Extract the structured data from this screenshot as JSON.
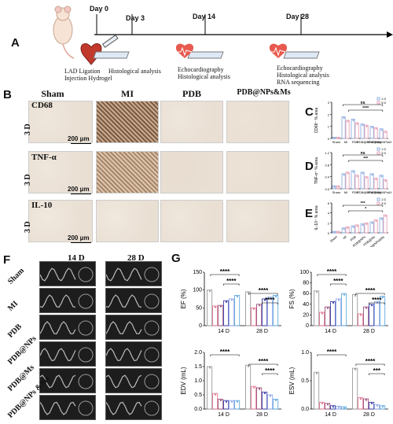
{
  "panels": {
    "a": "A",
    "b": "B",
    "c": "C",
    "d": "D",
    "e": "E",
    "f": "F",
    "g": "G"
  },
  "timeline": {
    "days": [
      "Day 0",
      "Day 3",
      "Day 14",
      "Day 28"
    ],
    "day0_labels": [
      "LAD Ligation",
      "Injection Hydrogel"
    ],
    "day3_labels": [
      "Histological analysis"
    ],
    "day14_labels": [
      "Echocardiography",
      "Histological analysis"
    ],
    "day28_labels": [
      "Echocardiography",
      "Histological analysis",
      "RNA sequencing"
    ]
  },
  "ihc": {
    "columns": [
      "Sham",
      "MI",
      "PDB",
      "PDB@NPs&Ms"
    ],
    "stains": [
      "CD68",
      "TNF-α",
      "IL-10"
    ],
    "row_label": "3 D",
    "scale": "200 μm"
  },
  "echo": {
    "columns": [
      "14 D",
      "28 D"
    ],
    "rows": [
      "Sham",
      "MI",
      "PDB",
      "PDB@NPs",
      "PDB@Ms",
      "PDB@NPs &Ms"
    ]
  },
  "colors": {
    "sham": "#9a9a9a",
    "mi": "#e2758f",
    "pdb": "#9b4f7c",
    "nps": "#3a3fa8",
    "ms": "#8fa6e8",
    "nmsms": "#5fa8e0"
  },
  "chart_data": [
    {
      "type": "bar",
      "id": "ef",
      "ylabel": "EF (%)",
      "ylim": [
        0,
        150
      ],
      "yticks": [
        0,
        50,
        100,
        150
      ],
      "categories": [
        "14 D",
        "28 D"
      ],
      "series": [
        {
          "values": [
            100,
            95
          ]
        },
        {
          "values": [
            55,
            50
          ]
        },
        {
          "values": [
            57,
            60
          ]
        },
        {
          "values": [
            70,
            75
          ]
        },
        {
          "values": [
            75,
            80
          ]
        },
        {
          "values": [
            85,
            85
          ]
        }
      ],
      "sig": [
        "****",
        "****",
        "****",
        "****"
      ]
    },
    {
      "type": "bar",
      "id": "fs",
      "ylabel": "FS (%)",
      "ylim": [
        0,
        100
      ],
      "yticks": [
        0,
        20,
        40,
        60,
        80,
        100
      ],
      "categories": [
        "14 D",
        "28 D"
      ],
      "series": [
        {
          "values": [
            65,
            58
          ]
        },
        {
          "values": [
            25,
            22
          ]
        },
        {
          "values": [
            35,
            35
          ]
        },
        {
          "values": [
            45,
            40
          ]
        },
        {
          "values": [
            50,
            45
          ]
        },
        {
          "values": [
            60,
            55
          ]
        }
      ],
      "sig": [
        "****",
        "****",
        "****",
        "****"
      ]
    },
    {
      "type": "bar",
      "id": "edv",
      "ylabel": "EDV (mL)",
      "ylim": [
        0,
        2.0
      ],
      "yticks": [
        0.0,
        0.5,
        1.0,
        1.5,
        2.0
      ],
      "categories": [
        "14 D",
        "28 D"
      ],
      "series": [
        {
          "values": [
            1.5,
            1.55
          ]
        },
        {
          "values": [
            0.55,
            0.8
          ]
        },
        {
          "values": [
            0.35,
            0.75
          ]
        },
        {
          "values": [
            0.3,
            0.6
          ]
        },
        {
          "values": [
            0.3,
            0.5
          ]
        },
        {
          "values": [
            0.3,
            0.35
          ]
        }
      ],
      "sig": [
        "****",
        "****",
        "****"
      ]
    },
    {
      "type": "bar",
      "id": "esv",
      "ylabel": "ESV (mL)",
      "ylim": [
        0,
        1.0
      ],
      "yticks": [
        0.0,
        0.5,
        1.0
      ],
      "categories": [
        "14 D",
        "28 D"
      ],
      "series": [
        {
          "values": [
            0.65,
            0.72
          ]
        },
        {
          "values": [
            0.12,
            0.2
          ]
        },
        {
          "values": [
            0.1,
            0.18
          ]
        },
        {
          "values": [
            0.06,
            0.12
          ]
        },
        {
          "values": [
            0.05,
            0.08
          ]
        },
        {
          "values": [
            0.04,
            0.06
          ]
        }
      ],
      "sig": [
        "****",
        "****",
        "***"
      ]
    },
    {
      "type": "bar",
      "id": "cd68",
      "ylabel": "CD68⁺ % area",
      "ylim": [
        0,
        3
      ],
      "yticks": [
        0,
        1,
        2,
        3
      ],
      "categories": [
        "Sham",
        "MI",
        "PDB",
        "PDB@NPs",
        "PDB@Ms",
        "PDB@NPs&Ms"
      ],
      "series": [
        {
          "name": "1 D",
          "values": [
            0.1,
            1.8,
            1.6,
            1.2,
            1.0,
            0.8
          ]
        },
        {
          "name": "3 D",
          "values": [
            0.1,
            1.5,
            1.3,
            1.1,
            0.9,
            0.6
          ]
        }
      ],
      "sig": [
        "ns",
        "****"
      ]
    },
    {
      "type": "bar",
      "id": "tnf",
      "ylabel": "TNF-α⁺ % area",
      "ylim": [
        0,
        1.2
      ],
      "yticks": [
        0,
        0.4,
        0.8,
        1.2
      ],
      "categories": [
        "Sham",
        "MI",
        "PDB",
        "PDB@NPs",
        "PDB@Ms",
        "PDB@NPs&Ms"
      ],
      "series": [
        {
          "name": "1 D",
          "values": [
            0.1,
            0.5,
            0.6,
            0.55,
            0.5,
            0.45
          ]
        },
        {
          "name": "3 D",
          "values": [
            0.1,
            0.55,
            0.45,
            0.4,
            0.35,
            0.3
          ]
        }
      ],
      "sig": [
        "ns",
        "***"
      ]
    },
    {
      "type": "bar",
      "id": "il10",
      "ylabel": "IL-10⁺ % area",
      "ylim": [
        0,
        6
      ],
      "yticks": [
        0,
        2,
        4,
        6
      ],
      "categories": [
        "Sham",
        "MI",
        "PDB",
        "PDB@NPs",
        "PDB@Ms",
        "PDB@NPs&Ms"
      ],
      "series": [
        {
          "name": "1 D",
          "values": [
            0.3,
            1.0,
            1.4,
            1.8,
            2.2,
            3.0
          ]
        },
        {
          "name": "3 D",
          "values": [
            0.3,
            1.2,
            1.6,
            2.0,
            2.6,
            3.6
          ]
        }
      ],
      "sig": [
        "***",
        "*"
      ]
    }
  ]
}
